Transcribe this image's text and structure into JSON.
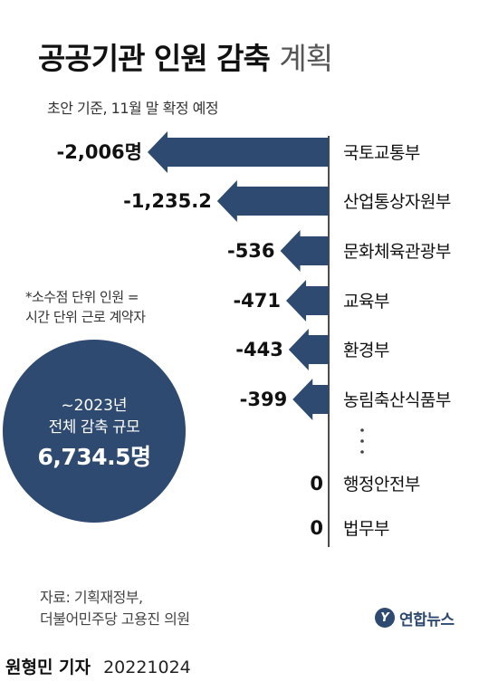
{
  "header": {
    "title_bold": "공공기관 인원 감축",
    "title_light": "계획",
    "subtitle": "초안 기준, 11월 말 확정 예정"
  },
  "note": {
    "line1": "*소수점 단위 인원 =",
    "line2": "시간 단위 근로 계약자"
  },
  "summary": {
    "period": "~2023년",
    "label": "전체 감축 규모",
    "value": "6,734.5명"
  },
  "source": {
    "line1": "자료: 기획재정부,",
    "line2": "더불어민주당 고용진 의원"
  },
  "logo": {
    "mark": "Y",
    "text": "연합뉴스"
  },
  "byline": {
    "name": "원형민 기자",
    "date": "20221024"
  },
  "colors": {
    "bar": "#2e4a71",
    "axis": "#111111",
    "text": "#111111"
  },
  "chart_data": {
    "type": "bar",
    "orientation": "horizontal",
    "direction": "leftward",
    "categories": [
      "국토교통부",
      "산업통상자원부",
      "문화체육관광부",
      "교육부",
      "환경부",
      "농림축산식품부",
      "행정안전부",
      "법무부"
    ],
    "values": [
      -2006,
      -1235.2,
      -536,
      -471,
      -443,
      -399,
      0,
      0
    ],
    "value_labels": [
      "-2,006명",
      "-1,235.2",
      "-536",
      "-471",
      "-443",
      "-399",
      "0",
      "0"
    ],
    "ellipsis_after_index": 5,
    "ellipsis_symbol": "⋮"
  }
}
